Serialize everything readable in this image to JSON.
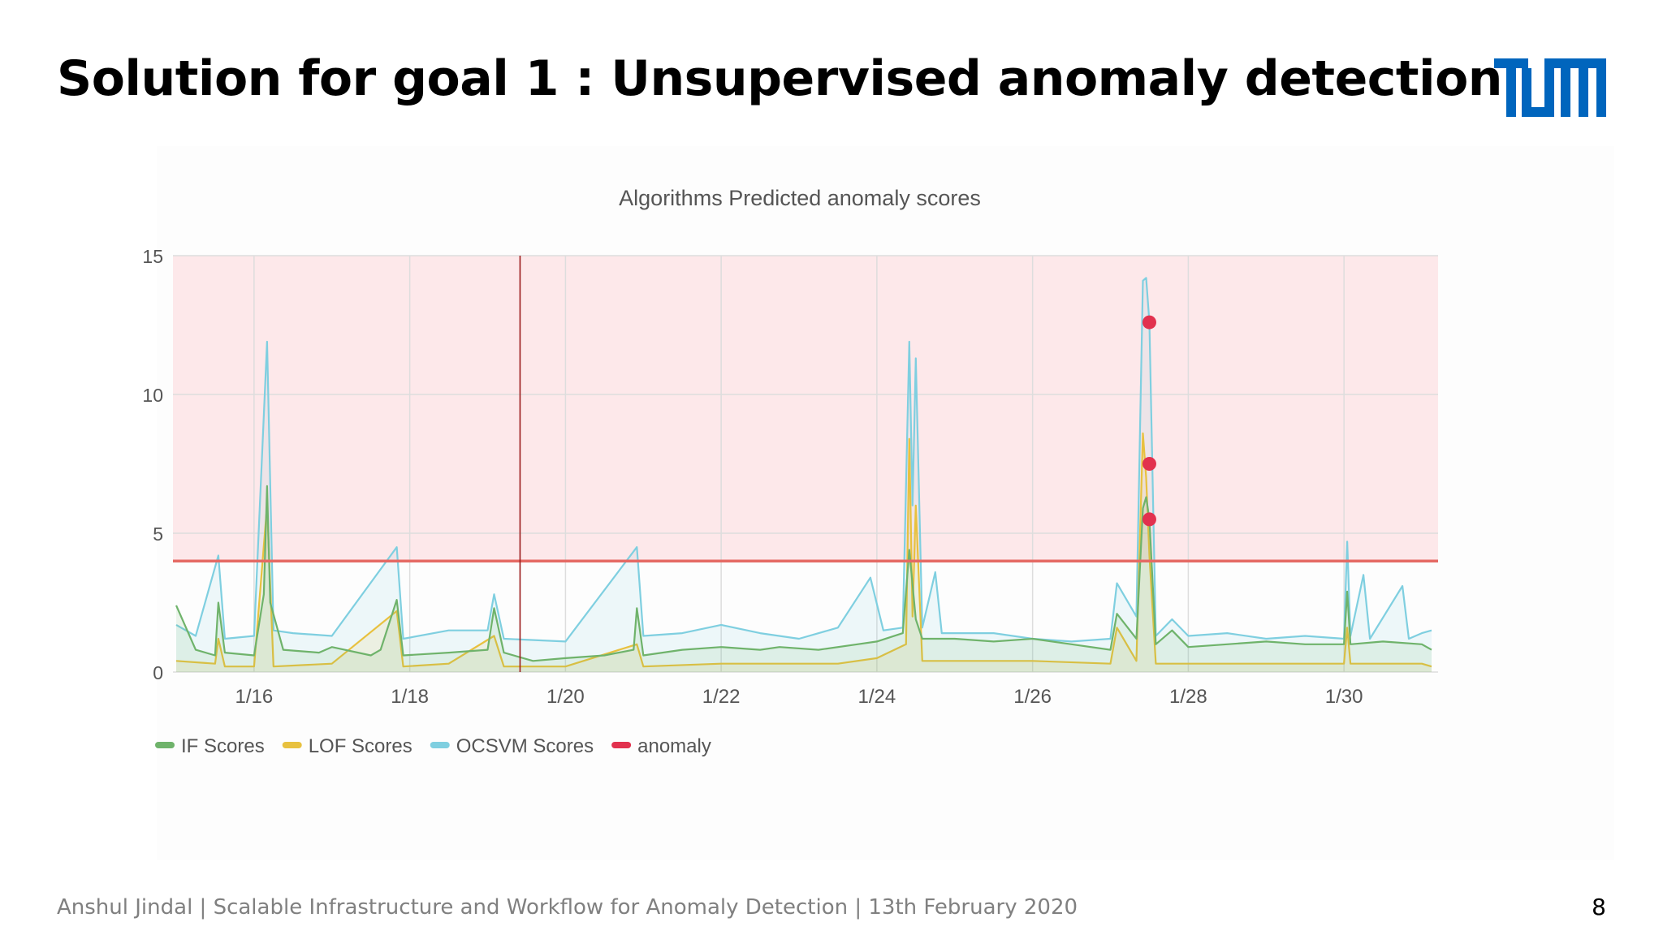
{
  "slide": {
    "title": "Solution for goal 1 : Unsupervised anomaly detection",
    "logo_text": "TUM",
    "footer": "Anshul Jindal | Scalable Infrastructure and Workflow for Anomaly Detection | 13th February 2020",
    "page_number": "8"
  },
  "colors": {
    "tum_blue": "#0065bd",
    "if": "#6fb36b",
    "lof": "#e8c13f",
    "ocsvm": "#7fcfe0",
    "anomaly": "#e2314e",
    "threshold": "#e56a64",
    "anomaly_region": "#fde8ea",
    "marker_line": "#9b1c1c"
  },
  "chart_data": {
    "type": "line",
    "title": "Algorithms Predicted anomaly scores",
    "xlabel": "",
    "ylabel": "",
    "x_ticks": [
      "1/16",
      "1/18",
      "1/20",
      "1/22",
      "1/24",
      "1/26",
      "1/28",
      "1/30"
    ],
    "xlim": [
      "2020-01-14T23:00",
      "2020-01-31T05:00"
    ],
    "ylim": [
      0,
      15
    ],
    "y_ticks": [
      0,
      5,
      10,
      15
    ],
    "grid": true,
    "legend": "bottom-left",
    "threshold": 4,
    "shaded_region": [
      4,
      15
    ],
    "marker_date": "2020-01-19T10:00",
    "series": [
      {
        "name": "IF Scores",
        "color": "#6fb36b",
        "points": [
          [
            "2020-01-15T00:00",
            2.4
          ],
          [
            "2020-01-15T06:00",
            0.8
          ],
          [
            "2020-01-15T12:00",
            0.6
          ],
          [
            "2020-01-15T13:00",
            2.5
          ],
          [
            "2020-01-15T15:00",
            0.7
          ],
          [
            "2020-01-16T00:00",
            0.6
          ],
          [
            "2020-01-16T03:00",
            2.8
          ],
          [
            "2020-01-16T04:00",
            6.7
          ],
          [
            "2020-01-16T05:00",
            2.5
          ],
          [
            "2020-01-16T09:00",
            0.8
          ],
          [
            "2020-01-16T20:00",
            0.7
          ],
          [
            "2020-01-17T00:00",
            0.9
          ],
          [
            "2020-01-17T12:00",
            0.6
          ],
          [
            "2020-01-17T15:00",
            0.8
          ],
          [
            "2020-01-17T20:00",
            2.6
          ],
          [
            "2020-01-17T22:00",
            0.6
          ],
          [
            "2020-01-18T12:00",
            0.7
          ],
          [
            "2020-01-19T00:00",
            0.8
          ],
          [
            "2020-01-19T02:00",
            2.3
          ],
          [
            "2020-01-19T05:00",
            0.7
          ],
          [
            "2020-01-19T14:00",
            0.4
          ],
          [
            "2020-01-20T00:00",
            0.5
          ],
          [
            "2020-01-20T12:00",
            0.6
          ],
          [
            "2020-01-20T21:00",
            0.8
          ],
          [
            "2020-01-20T22:00",
            2.3
          ],
          [
            "2020-01-21T00:00",
            0.6
          ],
          [
            "2020-01-21T12:00",
            0.8
          ],
          [
            "2020-01-22T00:00",
            0.9
          ],
          [
            "2020-01-22T12:00",
            0.8
          ],
          [
            "2020-01-22T18:00",
            0.9
          ],
          [
            "2020-01-23T06:00",
            0.8
          ],
          [
            "2020-01-23T18:00",
            1.0
          ],
          [
            "2020-01-24T00:00",
            1.1
          ],
          [
            "2020-01-24T08:00",
            1.4
          ],
          [
            "2020-01-24T10:00",
            4.4
          ],
          [
            "2020-01-24T12:00",
            1.9
          ],
          [
            "2020-01-24T14:00",
            1.2
          ],
          [
            "2020-01-25T00:00",
            1.2
          ],
          [
            "2020-01-25T12:00",
            1.1
          ],
          [
            "2020-01-26T00:00",
            1.2
          ],
          [
            "2020-01-26T12:00",
            1.0
          ],
          [
            "2020-01-27T00:00",
            0.8
          ],
          [
            "2020-01-27T02:00",
            2.1
          ],
          [
            "2020-01-27T08:00",
            1.2
          ],
          [
            "2020-01-27T10:00",
            5.9
          ],
          [
            "2020-01-27T11:00",
            6.3
          ],
          [
            "2020-01-27T12:00",
            5.5
          ],
          [
            "2020-01-27T14:00",
            1.0
          ],
          [
            "2020-01-27T19:00",
            1.5
          ],
          [
            "2020-01-28T00:00",
            0.9
          ],
          [
            "2020-01-28T12:00",
            1.0
          ],
          [
            "2020-01-29T00:00",
            1.1
          ],
          [
            "2020-01-29T12:00",
            1.0
          ],
          [
            "2020-01-30T00:00",
            1.0
          ],
          [
            "2020-01-30T01:00",
            2.9
          ],
          [
            "2020-01-30T02:00",
            1.0
          ],
          [
            "2020-01-30T12:00",
            1.1
          ],
          [
            "2020-01-31T00:00",
            1.0
          ],
          [
            "2020-01-31T03:00",
            0.8
          ]
        ]
      },
      {
        "name": "LOF Scores",
        "color": "#e8c13f",
        "points": [
          [
            "2020-01-15T00:00",
            0.4
          ],
          [
            "2020-01-15T12:00",
            0.3
          ],
          [
            "2020-01-15T13:00",
            1.2
          ],
          [
            "2020-01-15T15:00",
            0.2
          ],
          [
            "2020-01-16T00:00",
            0.2
          ],
          [
            "2020-01-16T04:00",
            6.0
          ],
          [
            "2020-01-16T06:00",
            0.2
          ],
          [
            "2020-01-17T00:00",
            0.3
          ],
          [
            "2020-01-17T20:00",
            2.2
          ],
          [
            "2020-01-17T22:00",
            0.2
          ],
          [
            "2020-01-18T12:00",
            0.3
          ],
          [
            "2020-01-19T02:00",
            1.3
          ],
          [
            "2020-01-19T05:00",
            0.2
          ],
          [
            "2020-01-20T00:00",
            0.2
          ],
          [
            "2020-01-20T22:00",
            1.0
          ],
          [
            "2020-01-21T00:00",
            0.2
          ],
          [
            "2020-01-22T00:00",
            0.3
          ],
          [
            "2020-01-22T12:00",
            0.3
          ],
          [
            "2020-01-23T12:00",
            0.3
          ],
          [
            "2020-01-24T00:00",
            0.5
          ],
          [
            "2020-01-24T09:00",
            1.0
          ],
          [
            "2020-01-24T10:00",
            8.4
          ],
          [
            "2020-01-24T11:00",
            2.0
          ],
          [
            "2020-01-24T12:00",
            6.0
          ],
          [
            "2020-01-24T14:00",
            0.4
          ],
          [
            "2020-01-25T00:00",
            0.4
          ],
          [
            "2020-01-26T00:00",
            0.4
          ],
          [
            "2020-01-27T00:00",
            0.3
          ],
          [
            "2020-01-27T02:00",
            1.6
          ],
          [
            "2020-01-27T08:00",
            0.4
          ],
          [
            "2020-01-27T10:00",
            8.6
          ],
          [
            "2020-01-27T11:00",
            7.0
          ],
          [
            "2020-01-27T12:00",
            4.2
          ],
          [
            "2020-01-27T14:00",
            0.3
          ],
          [
            "2020-01-28T00:00",
            0.3
          ],
          [
            "2020-01-29T00:00",
            0.3
          ],
          [
            "2020-01-30T00:00",
            0.3
          ],
          [
            "2020-01-30T01:00",
            1.6
          ],
          [
            "2020-01-30T02:00",
            0.3
          ],
          [
            "2020-01-31T00:00",
            0.3
          ],
          [
            "2020-01-31T03:00",
            0.2
          ]
        ]
      },
      {
        "name": "OCSVM Scores",
        "color": "#7fcfe0",
        "points": [
          [
            "2020-01-15T00:00",
            1.7
          ],
          [
            "2020-01-15T06:00",
            1.3
          ],
          [
            "2020-01-15T13:00",
            4.2
          ],
          [
            "2020-01-15T15:00",
            1.2
          ],
          [
            "2020-01-16T00:00",
            1.3
          ],
          [
            "2020-01-16T04:00",
            11.9
          ],
          [
            "2020-01-16T06:00",
            1.5
          ],
          [
            "2020-01-16T12:00",
            1.4
          ],
          [
            "2020-01-17T00:00",
            1.3
          ],
          [
            "2020-01-17T20:00",
            4.5
          ],
          [
            "2020-01-17T22:00",
            1.2
          ],
          [
            "2020-01-18T12:00",
            1.5
          ],
          [
            "2020-01-19T00:00",
            1.5
          ],
          [
            "2020-01-19T02:00",
            2.8
          ],
          [
            "2020-01-19T05:00",
            1.2
          ],
          [
            "2020-01-20T00:00",
            1.1
          ],
          [
            "2020-01-20T22:00",
            4.5
          ],
          [
            "2020-01-21T00:00",
            1.3
          ],
          [
            "2020-01-21T12:00",
            1.4
          ],
          [
            "2020-01-22T00:00",
            1.7
          ],
          [
            "2020-01-22T12:00",
            1.4
          ],
          [
            "2020-01-23T00:00",
            1.2
          ],
          [
            "2020-01-23T12:00",
            1.6
          ],
          [
            "2020-01-23T22:00",
            3.4
          ],
          [
            "2020-01-24T02:00",
            1.5
          ],
          [
            "2020-01-24T08:00",
            1.6
          ],
          [
            "2020-01-24T10:00",
            11.9
          ],
          [
            "2020-01-24T11:00",
            6.0
          ],
          [
            "2020-01-24T12:00",
            11.3
          ],
          [
            "2020-01-24T14:00",
            1.6
          ],
          [
            "2020-01-24T18:00",
            3.6
          ],
          [
            "2020-01-24T20:00",
            1.4
          ],
          [
            "2020-01-25T12:00",
            1.4
          ],
          [
            "2020-01-26T00:00",
            1.2
          ],
          [
            "2020-01-26T12:00",
            1.1
          ],
          [
            "2020-01-27T00:00",
            1.2
          ],
          [
            "2020-01-27T02:00",
            3.2
          ],
          [
            "2020-01-27T08:00",
            2.0
          ],
          [
            "2020-01-27T10:00",
            14.1
          ],
          [
            "2020-01-27T11:00",
            14.2
          ],
          [
            "2020-01-27T12:00",
            12.6
          ],
          [
            "2020-01-27T14:00",
            1.3
          ],
          [
            "2020-01-27T19:00",
            1.9
          ],
          [
            "2020-01-28T00:00",
            1.3
          ],
          [
            "2020-01-28T12:00",
            1.4
          ],
          [
            "2020-01-29T00:00",
            1.2
          ],
          [
            "2020-01-29T12:00",
            1.3
          ],
          [
            "2020-01-30T00:00",
            1.2
          ],
          [
            "2020-01-30T01:00",
            4.7
          ],
          [
            "2020-01-30T02:00",
            1.3
          ],
          [
            "2020-01-30T06:00",
            3.5
          ],
          [
            "2020-01-30T08:00",
            1.2
          ],
          [
            "2020-01-30T18:00",
            3.1
          ],
          [
            "2020-01-30T20:00",
            1.2
          ],
          [
            "2020-01-31T00:00",
            1.4
          ],
          [
            "2020-01-31T03:00",
            1.5
          ]
        ]
      },
      {
        "name": "anomaly",
        "color": "#e2314e",
        "points": [
          [
            "2020-01-27T12:00",
            12.6
          ],
          [
            "2020-01-27T12:00",
            7.5
          ],
          [
            "2020-01-27T12:00",
            5.5
          ]
        ]
      }
    ]
  }
}
